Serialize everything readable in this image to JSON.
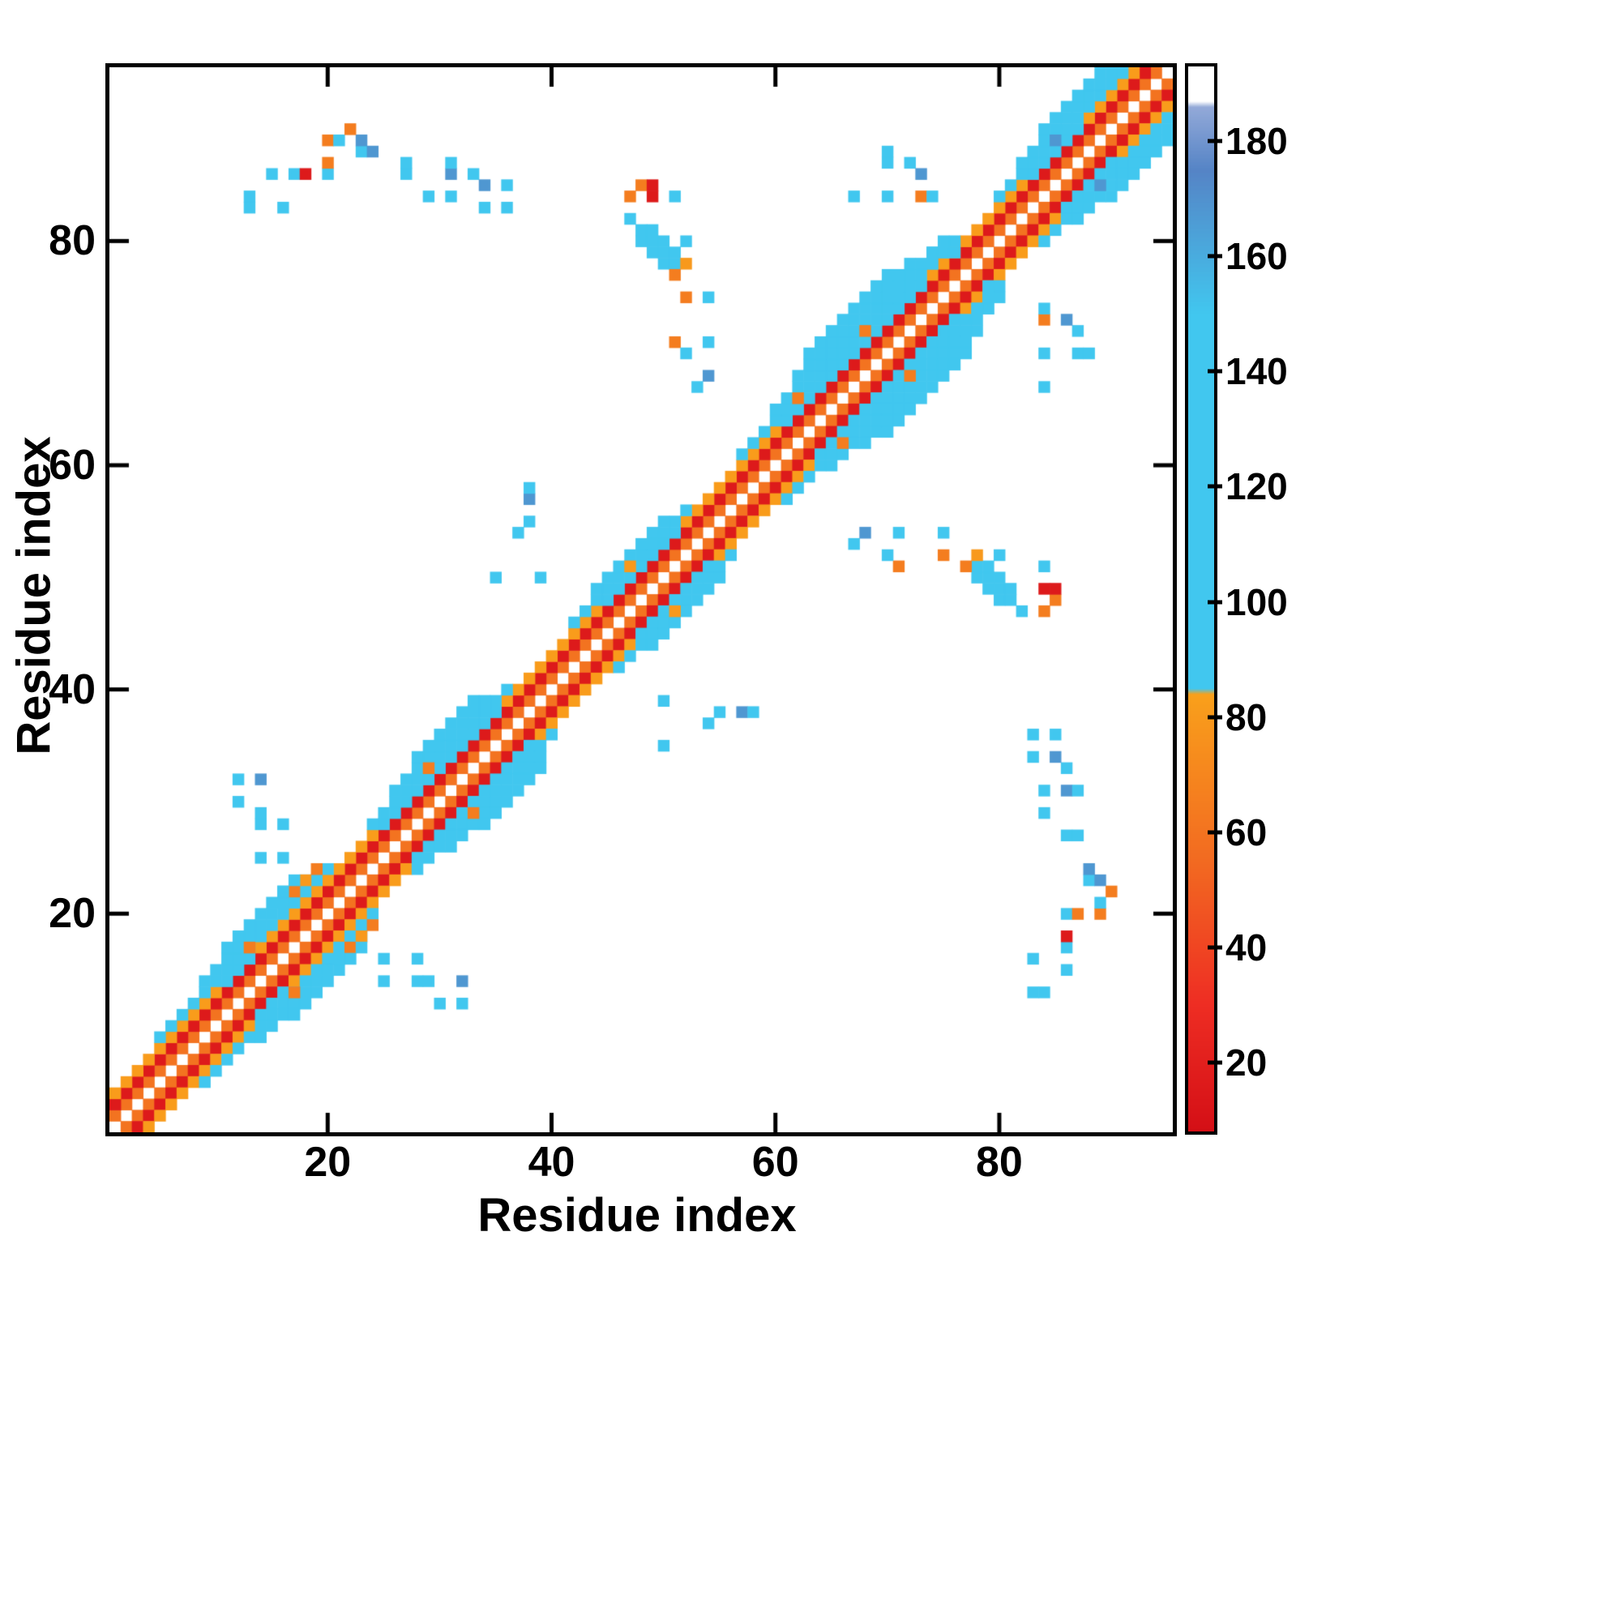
{
  "chart_data": {
    "type": "heatmap",
    "title": "",
    "xlabel": "Residue index",
    "ylabel": "Residue index",
    "x_range": [
      1,
      95
    ],
    "y_range": [
      1,
      95
    ],
    "x_ticks": [
      20,
      40,
      60,
      80
    ],
    "y_ticks": [
      20,
      40,
      60,
      80
    ],
    "grid": false,
    "background_color": "#ffffff",
    "frame_color": "#000000",
    "symmetric": true,
    "description": "Residue-residue contact map; diagonal bands of short-range contacts (red/orange = low colorbar values, cyan/blue = high values) with scattered long-range contact clusters; white = no contact",
    "colorbar": {
      "range": [
        8,
        193
      ],
      "ticks": [
        20,
        40,
        60,
        80,
        100,
        120,
        140,
        160,
        180
      ],
      "stops": [
        {
          "v": 8,
          "color": "#d40f16"
        },
        {
          "v": 30,
          "color": "#ee2d23"
        },
        {
          "v": 55,
          "color": "#f26a21"
        },
        {
          "v": 84,
          "color": "#f9a01b"
        },
        {
          "v": 85,
          "color": "#41c7ef"
        },
        {
          "v": 150,
          "color": "#41c7ef"
        },
        {
          "v": 175,
          "color": "#5584c6"
        },
        {
          "v": 186,
          "color": "#93a9d8"
        },
        {
          "v": 187,
          "color": "#ffffff"
        },
        {
          "v": 193,
          "color": "#ffffff"
        }
      ]
    },
    "diagonal_bands": [
      {
        "offset": 1,
        "value": 60,
        "ranges": [
          [
            1,
            94
          ]
        ]
      },
      {
        "offset": 2,
        "value": 16,
        "ranges": [
          [
            1,
            93
          ]
        ]
      },
      {
        "offset": 3,
        "value": 82,
        "ranges": [
          [
            1,
            10
          ],
          [
            14,
            24
          ],
          [
            36,
            44
          ],
          [
            52,
            60
          ],
          [
            74,
            82
          ],
          [
            88,
            92
          ]
        ]
      },
      {
        "offset": 3,
        "value": 106,
        "ranges": [
          [
            11,
            13
          ],
          [
            25,
            35
          ],
          [
            45,
            51
          ],
          [
            61,
            73
          ],
          [
            83,
            87
          ]
        ]
      },
      {
        "offset": 4,
        "value": 108,
        "ranges": [
          [
            5,
            20
          ],
          [
            24,
            36
          ],
          [
            42,
            52
          ],
          [
            57,
            76
          ],
          [
            80,
            91
          ]
        ]
      },
      {
        "offset": 5,
        "value": 116,
        "ranges": [
          [
            9,
            18
          ],
          [
            26,
            34
          ],
          [
            44,
            50
          ],
          [
            60,
            74
          ],
          [
            82,
            90
          ]
        ]
      },
      {
        "offset": 6,
        "value": 122,
        "ranges": [
          [
            11,
            16
          ],
          [
            28,
            33
          ],
          [
            62,
            72
          ],
          [
            84,
            89
          ]
        ]
      },
      {
        "offset": 7,
        "value": 126,
        "ranges": [
          [
            63,
            70
          ]
        ]
      }
    ],
    "off_diagonal_cells": [
      [
        13,
        83,
        108
      ],
      [
        16,
        83,
        108
      ],
      [
        13,
        84,
        108
      ],
      [
        15,
        86,
        108
      ],
      [
        17,
        86,
        108
      ],
      [
        18,
        86,
        16
      ],
      [
        20,
        86,
        108
      ],
      [
        20,
        87,
        65
      ],
      [
        20,
        89,
        65
      ],
      [
        21,
        89,
        108
      ],
      [
        23,
        88,
        108
      ],
      [
        23,
        89,
        168
      ],
      [
        24,
        88,
        168
      ],
      [
        22,
        90,
        65
      ],
      [
        27,
        86,
        108
      ],
      [
        27,
        87,
        108
      ],
      [
        31,
        86,
        168
      ],
      [
        31,
        87,
        108
      ],
      [
        33,
        86,
        108
      ],
      [
        29,
        84,
        108
      ],
      [
        31,
        84,
        108
      ],
      [
        34,
        83,
        108
      ],
      [
        36,
        83,
        108
      ],
      [
        34,
        85,
        168
      ],
      [
        36,
        85,
        108
      ],
      [
        12,
        30,
        108
      ],
      [
        12,
        32,
        108
      ],
      [
        14,
        25,
        108
      ],
      [
        16,
        25,
        108
      ],
      [
        14,
        28,
        108
      ],
      [
        16,
        28,
        108
      ],
      [
        14,
        29,
        108
      ],
      [
        14,
        32,
        168
      ],
      [
        16,
        21,
        108
      ],
      [
        17,
        22,
        65
      ],
      [
        18,
        23,
        80
      ],
      [
        17,
        23,
        108
      ],
      [
        19,
        24,
        65
      ],
      [
        16,
        22,
        108
      ],
      [
        35,
        50,
        108
      ],
      [
        39,
        50,
        108
      ],
      [
        37,
        54,
        108
      ],
      [
        38,
        55,
        108
      ],
      [
        38,
        57,
        168
      ],
      [
        38,
        58,
        108
      ],
      [
        47,
        82,
        108
      ],
      [
        48,
        80,
        108
      ],
      [
        48,
        81,
        116
      ],
      [
        49,
        79,
        108
      ],
      [
        49,
        80,
        116
      ],
      [
        49,
        81,
        108
      ],
      [
        50,
        78,
        108
      ],
      [
        50,
        79,
        116
      ],
      [
        50,
        80,
        108
      ],
      [
        51,
        78,
        108
      ],
      [
        51,
        79,
        108
      ],
      [
        52,
        78,
        80
      ],
      [
        51,
        77,
        65
      ],
      [
        52,
        80,
        108
      ],
      [
        49,
        84,
        16
      ],
      [
        47,
        84,
        65
      ],
      [
        48,
        85,
        65
      ],
      [
        49,
        85,
        16
      ],
      [
        51,
        84,
        108
      ],
      [
        51,
        71,
        65
      ],
      [
        54,
        71,
        108
      ],
      [
        52,
        70,
        108
      ],
      [
        54,
        68,
        168
      ],
      [
        53,
        67,
        108
      ],
      [
        52,
        75,
        65
      ],
      [
        54,
        75,
        108
      ],
      [
        67,
        84,
        108
      ],
      [
        70,
        84,
        108
      ],
      [
        70,
        87,
        108
      ],
      [
        72,
        87,
        108
      ],
      [
        73,
        86,
        168
      ],
      [
        73,
        84,
        65
      ],
      [
        74,
        84,
        108
      ],
      [
        70,
        88,
        108
      ],
      [
        74,
        79,
        108
      ],
      [
        75,
        79,
        116
      ],
      [
        74,
        78,
        108
      ],
      [
        76,
        79,
        108
      ],
      [
        75,
        80,
        108
      ],
      [
        85,
        89,
        168
      ],
      [
        13,
        17,
        65
      ],
      [
        29,
        33,
        65
      ],
      [
        47,
        51,
        80
      ],
      [
        62,
        66,
        65
      ],
      [
        68,
        72,
        65
      ]
    ]
  }
}
